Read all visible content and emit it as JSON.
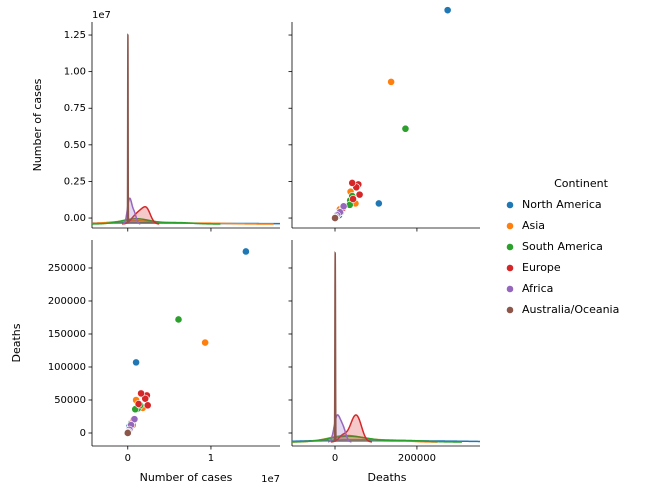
{
  "chart_data": {
    "type": "pairplot",
    "variables": [
      {
        "label": "Number of cases",
        "xlim": [
          -4300000,
          18300000
        ],
        "xticks": [
          0,
          {
            "value": 10000000,
            "label": "1"
          }
        ],
        "x_offset": "1e7",
        "ylim": [
          -680000,
          13390000
        ],
        "yticks": [
          {
            "value": 0,
            "label": "0.00"
          },
          {
            "value": 2500000,
            "label": "0.25"
          },
          {
            "value": 5000000,
            "label": "0.50"
          },
          {
            "value": 7500000,
            "label": "0.75"
          },
          {
            "value": 10000000,
            "label": "1.00"
          },
          {
            "value": 12500000,
            "label": "1.25"
          }
        ],
        "y_offset": "1e7"
      },
      {
        "label": "Deaths",
        "xlim": [
          -105000,
          354000
        ],
        "xticks": [
          0,
          200000
        ],
        "ylim": [
          -19700,
          292400
        ],
        "yticks": [
          0,
          50000,
          100000,
          150000,
          200000,
          250000
        ]
      }
    ],
    "series": [
      {
        "name": "North America",
        "color": "#1f77b4",
        "x": [
          14200000,
          1000000,
          400000,
          200000
        ],
        "y": [
          275000,
          107000,
          15000,
          10000
        ]
      },
      {
        "name": "Asia",
        "color": "#ff7f0e",
        "x": [
          9300000,
          1000000,
          1800000,
          600000,
          300000
        ],
        "y": [
          137000,
          50000,
          38000,
          12000,
          8000
        ]
      },
      {
        "name": "South America",
        "color": "#2ca02c",
        "x": [
          6100000,
          1200000,
          900000,
          1500000,
          400000
        ],
        "y": [
          172000,
          37000,
          36000,
          42000,
          14000
        ]
      },
      {
        "name": "Europe",
        "color": "#d62728",
        "x": [
          2300000,
          2100000,
          2400000,
          1600000,
          1300000,
          700000
        ],
        "y": [
          57000,
          52000,
          42000,
          60000,
          44000,
          20000
        ]
      },
      {
        "name": "Africa",
        "color": "#9467bd",
        "x": [
          800000,
          400000,
          200000,
          100000
        ],
        "y": [
          21000,
          12000,
          5000,
          2000
        ]
      },
      {
        "name": "Australia/Oceania",
        "color": "#8c564b",
        "x": [
          30000,
          2000
        ],
        "y": [
          900,
          50
        ]
      }
    ],
    "legend": {
      "title": "Continent",
      "position": "right"
    }
  }
}
